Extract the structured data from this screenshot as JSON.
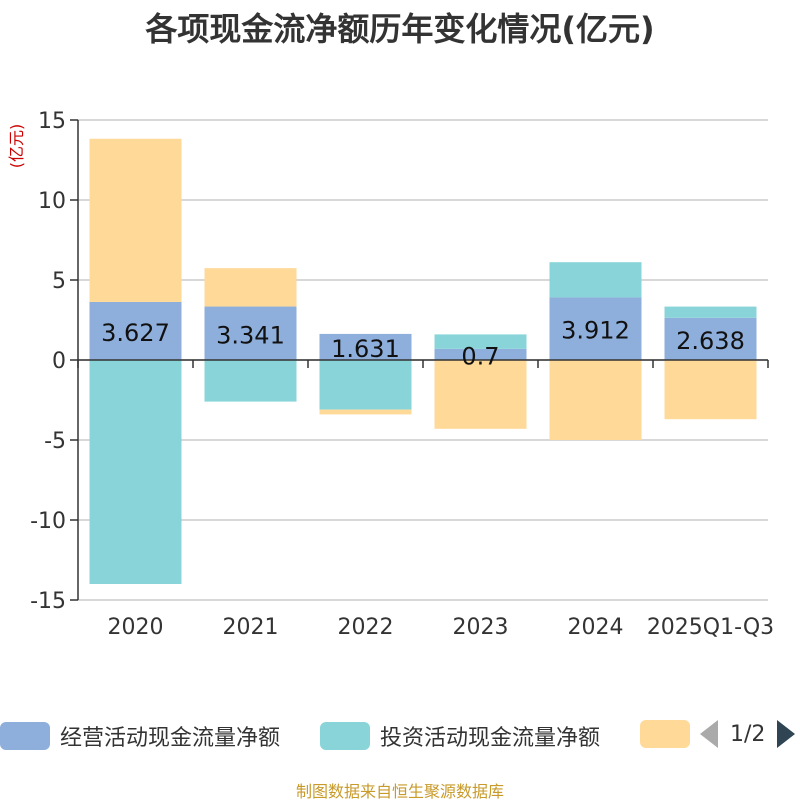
{
  "chart_data": {
    "type": "bar",
    "stacked": true,
    "title": "各项现金流净额历年变化情况(亿元)",
    "ylabel": "(亿元)",
    "categories": [
      "2020",
      "2021",
      "2022",
      "2023",
      "2024",
      "2025Q1-Q3"
    ],
    "ylim": [
      -15,
      15
    ],
    "yticks": [
      15,
      10,
      5,
      0,
      -5,
      -10,
      -15
    ],
    "ytick_labels": [
      "15",
      "10",
      "5",
      "0",
      "-5",
      "-10",
      "-15"
    ],
    "grid": true,
    "legend_position": "bottom",
    "series": [
      {
        "name": "经营活动现金流量净额",
        "color": "#8eaedb",
        "values": [
          3.627,
          3.341,
          1.631,
          0.7,
          3.912,
          2.638
        ],
        "data_labels": [
          "3.627",
          "3.341",
          "1.631",
          "0.7",
          "3.912",
          "2.638"
        ]
      },
      {
        "name": "投资活动现金流量净额",
        "color": "#88d4d8",
        "values": [
          -14.0,
          -2.6,
          -3.1,
          0.9,
          2.2,
          0.7
        ]
      },
      {
        "name": "",
        "color": "#fed998",
        "values": [
          10.2,
          2.4,
          -0.3,
          -4.3,
          -5.0,
          -3.7
        ]
      }
    ]
  },
  "legend": {
    "page_label": "1/2"
  },
  "source": "制图数据来自恒生聚源数据库"
}
